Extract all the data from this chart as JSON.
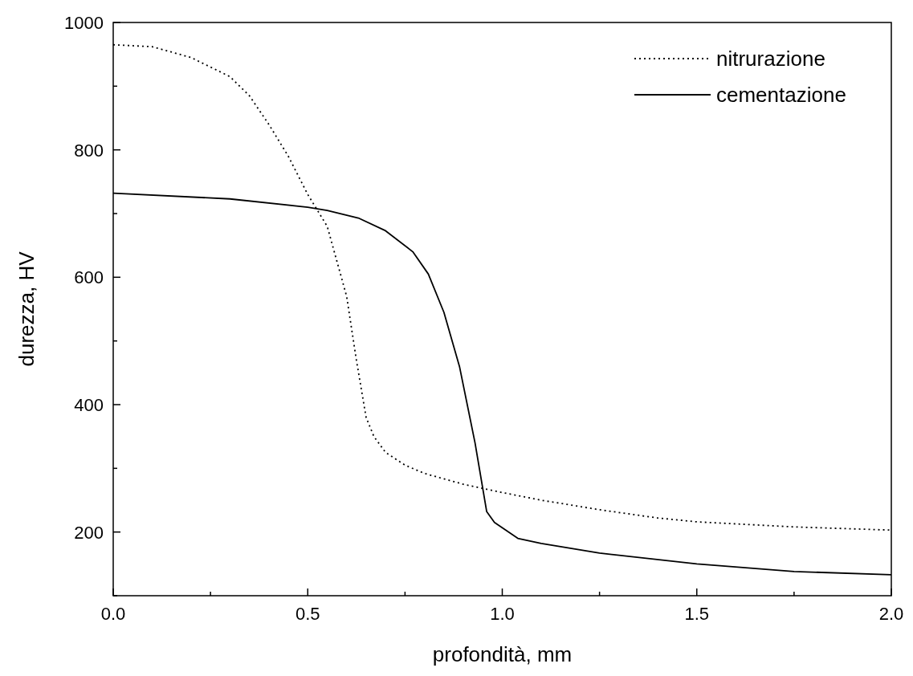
{
  "chart_data": {
    "type": "line",
    "xlabel": "profondità, mm",
    "ylabel": "durezza, HV",
    "xlim": [
      0,
      2
    ],
    "ylim": [
      100,
      1000
    ],
    "xticks": [
      {
        "value": 0,
        "label": "0.0"
      },
      {
        "value": 0.25,
        "label": null
      },
      {
        "value": 0.5,
        "label": "0.5"
      },
      {
        "value": 0.75,
        "label": null
      },
      {
        "value": 1,
        "label": "1.0"
      },
      {
        "value": 1.25,
        "label": null
      },
      {
        "value": 1.5,
        "label": "1.5"
      },
      {
        "value": 1.75,
        "label": null
      },
      {
        "value": 2,
        "label": "2.0"
      }
    ],
    "yticks": [
      {
        "value": 100,
        "label": null
      },
      200,
      {
        "value": 300,
        "label": null
      },
      400,
      {
        "value": 500,
        "label": null
      },
      600,
      {
        "value": 700,
        "label": null
      },
      800,
      {
        "value": 900,
        "label": null
      },
      1000
    ],
    "grid": false,
    "legend": "top right",
    "series": [
      {
        "name": "nitrurazione",
        "color": "#000000",
        "line_style": "dotted",
        "x": [
          0,
          0.1,
          0.2,
          0.3,
          0.35,
          0.4,
          0.45,
          0.5,
          0.55,
          0.6,
          0.625,
          0.65,
          0.67,
          0.7,
          0.75,
          0.8,
          0.9,
          1.0,
          1.1,
          1.25,
          1.4,
          1.5,
          1.75,
          2.0
        ],
        "values": [
          965,
          962,
          945,
          915,
          885,
          840,
          790,
          730,
          680,
          570,
          470,
          380,
          350,
          325,
          305,
          292,
          275,
          262,
          250,
          235,
          222,
          216,
          208,
          203
        ]
      },
      {
        "name": "cementazione",
        "color": "#000000",
        "line_style": "solid",
        "x": [
          0,
          0.3,
          0.5,
          0.55,
          0.63,
          0.7,
          0.77,
          0.81,
          0.85,
          0.89,
          0.93,
          0.96,
          0.98,
          1.04,
          1.1,
          1.25,
          1.5,
          1.75,
          2.0
        ],
        "values": [
          732,
          723,
          710,
          705,
          693,
          673,
          640,
          605,
          545,
          460,
          340,
          232,
          215,
          190,
          182,
          167,
          150,
          138,
          133
        ]
      }
    ]
  }
}
